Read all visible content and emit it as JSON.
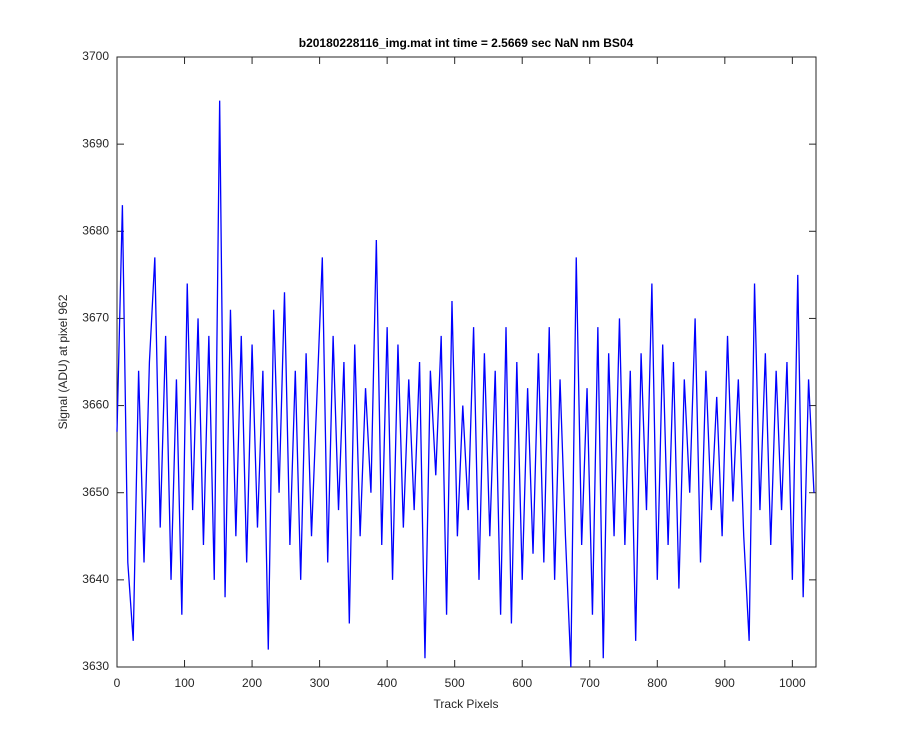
{
  "chart_data": {
    "type": "line",
    "title": "b20180228116_img.mat int time = 2.5669 sec  NaN nm BS04",
    "xlabel": "Track Pixels",
    "ylabel": "Signal (ADU) at pixel 962",
    "xlim": [
      0,
      1035
    ],
    "ylim": [
      3630,
      3700
    ],
    "xticks": [
      0,
      100,
      200,
      300,
      400,
      500,
      600,
      700,
      800,
      900,
      1000
    ],
    "yticks": [
      3630,
      3640,
      3650,
      3660,
      3670,
      3680,
      3690,
      3700
    ],
    "grid": false,
    "x": [
      0,
      8,
      16,
      24,
      32,
      40,
      48,
      56,
      64,
      72,
      80,
      88,
      96,
      104,
      112,
      120,
      128,
      136,
      144,
      152,
      160,
      168,
      176,
      184,
      192,
      200,
      208,
      216,
      224,
      232,
      240,
      248,
      256,
      264,
      272,
      280,
      288,
      296,
      304,
      312,
      320,
      328,
      336,
      344,
      352,
      360,
      368,
      376,
      384,
      392,
      400,
      408,
      416,
      424,
      432,
      440,
      448,
      456,
      464,
      472,
      480,
      488,
      496,
      504,
      512,
      520,
      528,
      536,
      544,
      552,
      560,
      568,
      576,
      584,
      592,
      600,
      608,
      616,
      624,
      632,
      640,
      648,
      656,
      664,
      672,
      680,
      688,
      696,
      704,
      712,
      720,
      728,
      736,
      744,
      752,
      760,
      768,
      776,
      784,
      792,
      800,
      808,
      816,
      824,
      832,
      840,
      848,
      856,
      864,
      872,
      880,
      888,
      896,
      904,
      912,
      920,
      928,
      936,
      944,
      952,
      960,
      968,
      976,
      984,
      992,
      1000,
      1008,
      1016,
      1024,
      1032
    ],
    "series": [
      {
        "color": "#0000ff",
        "values": [
          3657,
          3683,
          3642,
          3633,
          3664,
          3642,
          3665,
          3677,
          3646,
          3668,
          3640,
          3663,
          3636,
          3674,
          3648,
          3670,
          3644,
          3668,
          3640,
          3695,
          3638,
          3671,
          3645,
          3668,
          3642,
          3667,
          3646,
          3664,
          3632,
          3671,
          3650,
          3673,
          3644,
          3664,
          3640,
          3666,
          3645,
          3661,
          3677,
          3642,
          3668,
          3648,
          3665,
          3635,
          3667,
          3645,
          3662,
          3650,
          3679,
          3644,
          3669,
          3640,
          3667,
          3646,
          3663,
          3648,
          3665,
          3631,
          3664,
          3652,
          3668,
          3636,
          3672,
          3645,
          3660,
          3648,
          3669,
          3640,
          3666,
          3645,
          3664,
          3636,
          3669,
          3635,
          3665,
          3640,
          3662,
          3643,
          3666,
          3642,
          3669,
          3640,
          3663,
          3645,
          3630,
          3677,
          3644,
          3662,
          3636,
          3669,
          3631,
          3666,
          3645,
          3670,
          3644,
          3664,
          3633,
          3666,
          3648,
          3674,
          3640,
          3667,
          3644,
          3665,
          3639,
          3663,
          3650,
          3670,
          3642,
          3664,
          3648,
          3661,
          3645,
          3668,
          3649,
          3663,
          3645,
          3633,
          3674,
          3648,
          3666,
          3644,
          3664,
          3648,
          3665,
          3640,
          3675,
          3638,
          3663,
          3650
        ]
      }
    ]
  }
}
